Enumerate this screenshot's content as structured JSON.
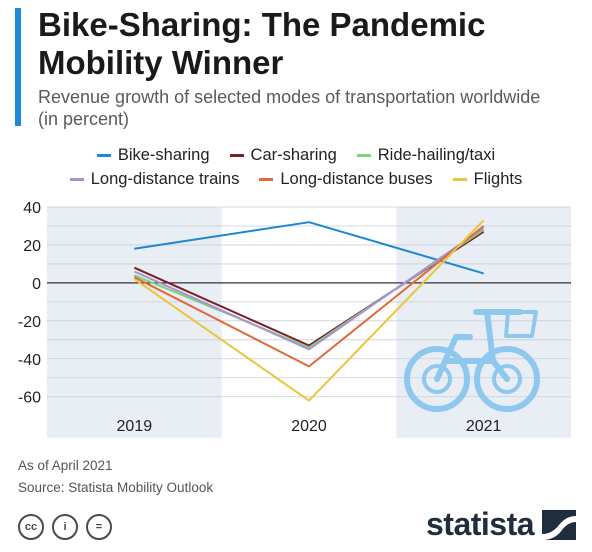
{
  "header": {
    "title": "Bike-Sharing: The Pandemic Mobility Winner",
    "subtitle": "Revenue growth of selected modes of transportation worldwide (in percent)"
  },
  "colors": {
    "accent": "#1d8ad6",
    "band": "#e9edf4",
    "bike_icon": "#8ec8ef",
    "brand": "#1f2d3d"
  },
  "chart_data": {
    "type": "line",
    "title": "Bike-Sharing: The Pandemic Mobility Winner",
    "subtitle": "Revenue growth of selected modes of transportation worldwide (in percent)",
    "xlabel": "",
    "ylabel": "",
    "categories": [
      "2019",
      "2020",
      "2021"
    ],
    "ylim": [
      -67,
      40
    ],
    "yticks": [
      40,
      20,
      0,
      -20,
      -40,
      -60
    ],
    "grid": true,
    "legend_position": "top",
    "series": [
      {
        "name": "Bike-sharing",
        "color": "#1f87d1",
        "values": [
          18,
          32,
          5
        ]
      },
      {
        "name": "Car-sharing",
        "color": "#7a1f24",
        "values": [
          8,
          -33,
          27
        ]
      },
      {
        "name": "Ride-hailing/taxi",
        "color": "#7bd67b",
        "values": [
          4,
          -34,
          28
        ]
      },
      {
        "name": "Long-distance trains",
        "color": "#a990d0",
        "values": [
          6,
          -35,
          29
        ]
      },
      {
        "name": "Long-distance buses",
        "color": "#e06a3c",
        "values": [
          3,
          -44,
          30
        ]
      },
      {
        "name": "Flights",
        "color": "#ecc53a",
        "values": [
          2,
          -62,
          33
        ]
      }
    ]
  },
  "footer": {
    "as_of": "As of April 2021",
    "source": "Source: Statista Mobility Outlook",
    "license_icons": [
      "cc",
      "i",
      "="
    ],
    "brand": "statista"
  }
}
